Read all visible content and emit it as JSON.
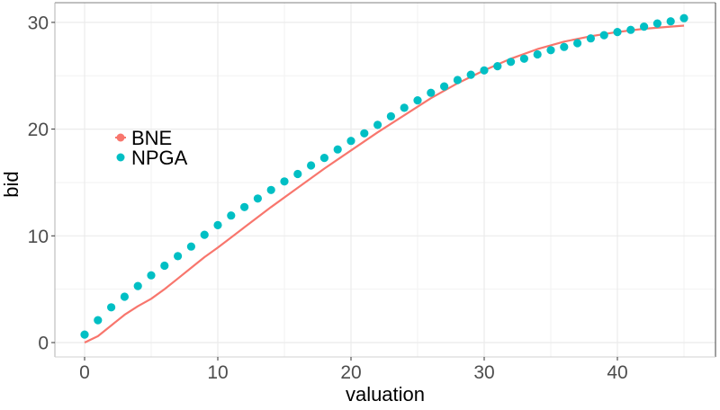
{
  "chart_data": {
    "type": "line",
    "title": "",
    "xlabel": "valuation",
    "ylabel": "bid",
    "xlim": [
      -2.25,
      47.25
    ],
    "ylim": [
      -1.5,
      31.8
    ],
    "x_ticks": [
      0,
      10,
      20,
      30,
      40
    ],
    "y_ticks": [
      0,
      10,
      20,
      30
    ],
    "x_tick_labels": [
      "0",
      "10",
      "20",
      "30",
      "40"
    ],
    "y_tick_labels": [
      "0",
      "10",
      "20",
      "30"
    ],
    "grid": true,
    "legend_position": "inside-left",
    "series": [
      {
        "name": "BNE",
        "kind": "line",
        "color": "#F8766D",
        "x": [
          0,
          1,
          2,
          3,
          4,
          5,
          6,
          7,
          8,
          9,
          10,
          12,
          14,
          16,
          18,
          20,
          22,
          24,
          26,
          28,
          30,
          32,
          34,
          36,
          38,
          40,
          42,
          44,
          45
        ],
        "y": [
          0,
          0.6,
          1.6,
          2.6,
          3.4,
          4.1,
          5.0,
          6.0,
          7.0,
          8.0,
          8.9,
          10.8,
          12.7,
          14.5,
          16.3,
          18.0,
          19.7,
          21.3,
          22.9,
          24.3,
          25.5,
          26.6,
          27.5,
          28.2,
          28.7,
          29.1,
          29.4,
          29.6,
          29.7
        ]
      },
      {
        "name": "NPGA",
        "kind": "scatter",
        "color": "#00BFC4",
        "x": [
          0,
          1,
          2,
          3,
          4,
          5,
          6,
          7,
          8,
          9,
          10,
          11,
          12,
          13,
          14,
          15,
          16,
          17,
          18,
          19,
          20,
          21,
          22,
          23,
          24,
          25,
          26,
          27,
          28,
          29,
          30,
          31,
          32,
          33,
          34,
          35,
          36,
          37,
          38,
          39,
          40,
          41,
          42,
          43,
          44,
          45
        ],
        "y": [
          0.75,
          2.1,
          3.3,
          4.3,
          5.3,
          6.3,
          7.2,
          8.1,
          9.0,
          10.1,
          11.0,
          11.9,
          12.7,
          13.5,
          14.3,
          15.1,
          15.8,
          16.6,
          17.3,
          18.1,
          18.9,
          19.6,
          20.4,
          21.2,
          22.0,
          22.7,
          23.4,
          24.0,
          24.6,
          25.1,
          25.5,
          25.9,
          26.3,
          26.6,
          27.0,
          27.4,
          27.7,
          28.05,
          28.5,
          28.8,
          29.1,
          29.3,
          29.6,
          29.9,
          30.1,
          30.4
        ]
      }
    ]
  },
  "legend": {
    "items": [
      {
        "label": "BNE",
        "color": "#F8766D"
      },
      {
        "label": "NPGA",
        "color": "#00BFC4"
      }
    ]
  },
  "axes": {
    "x_title": "valuation",
    "y_title": "bid"
  }
}
